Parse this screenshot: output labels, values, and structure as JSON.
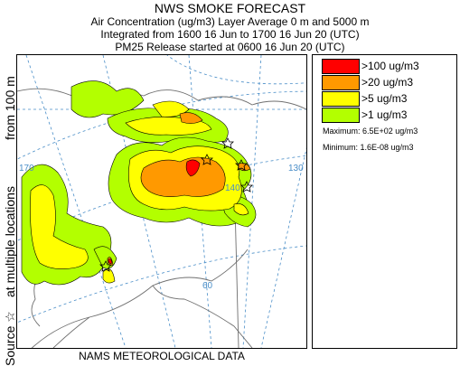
{
  "header": {
    "title": "NWS SMOKE FORECAST",
    "line1": "Air Concentration (ug/m3) Layer Average    0 m and  5000 m",
    "line2": "Integrated from 1600 16 Jun to 1700 16 Jun 20 (UTC)",
    "line3": "PM25 Release started at 0600 16 Jun 20 (UTC)"
  },
  "side_label": {
    "source": "Source ☆",
    "locations": "at multiple locations",
    "from": "from   100 m"
  },
  "legend": {
    "items": [
      {
        "label": ">100 ug/m3",
        "color": "#ff0000"
      },
      {
        "label": ">20 ug/m3",
        "color": "#ff9900"
      },
      {
        "label": ">5 ug/m3",
        "color": "#ffff00"
      },
      {
        "label": ">1 ug/m3",
        "color": "#b3ff00"
      }
    ],
    "maximum": "Maximum: 6.5E+02 ug/m3",
    "minimum": "Minimum: 1.6E-08 ug/m3"
  },
  "map": {
    "grid_labels": [
      "170",
      "130",
      "140",
      "60"
    ],
    "grid_color": "#4a8ec8",
    "coast_color": "#6f6f6f"
  },
  "footer": "NAMS METEOROLOGICAL DATA"
}
